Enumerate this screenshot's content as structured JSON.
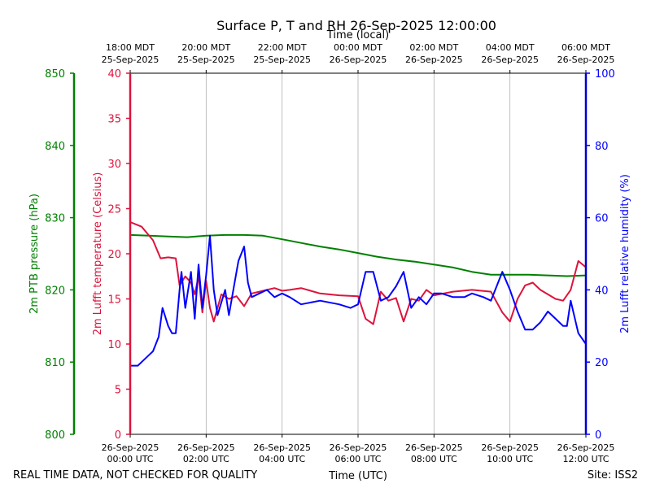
{
  "chart_data": {
    "type": "line",
    "title": "Surface P, T and RH 26-Sep-2025 12:00:00",
    "top_axis_label": "Time (local)",
    "top_ticks": [
      {
        "line1": "18:00 MDT",
        "line2": "25-Sep-2025"
      },
      {
        "line1": "20:00 MDT",
        "line2": "25-Sep-2025"
      },
      {
        "line1": "22:00 MDT",
        "line2": "25-Sep-2025"
      },
      {
        "line1": "00:00 MDT",
        "line2": "26-Sep-2025"
      },
      {
        "line1": "02:00 MDT",
        "line2": "26-Sep-2025"
      },
      {
        "line1": "04:00 MDT",
        "line2": "26-Sep-2025"
      },
      {
        "line1": "06:00 MDT",
        "line2": "26-Sep-2025"
      }
    ],
    "xlabel": "Time (UTC)",
    "bottom_ticks": [
      {
        "line1": "26-Sep-2025",
        "line2": "00:00 UTC"
      },
      {
        "line1": "26-Sep-2025",
        "line2": "02:00 UTC"
      },
      {
        "line1": "26-Sep-2025",
        "line2": "04:00 UTC"
      },
      {
        "line1": "26-Sep-2025",
        "line2": "06:00 UTC"
      },
      {
        "line1": "26-Sep-2025",
        "line2": "08:00 UTC"
      },
      {
        "line1": "26-Sep-2025",
        "line2": "10:00 UTC"
      },
      {
        "line1": "26-Sep-2025",
        "line2": "12:00 UTC"
      }
    ],
    "xlim_hours": [
      0,
      12
    ],
    "grid": "vertical",
    "axes": {
      "pressure": {
        "label": "2m PTB pressure (hPa)",
        "ylim": [
          800,
          850
        ],
        "ticks": [
          800,
          810,
          820,
          830,
          840,
          850
        ],
        "color": "#008000"
      },
      "temperature": {
        "label": "2m Lufft temperature (Celsius)",
        "ylim": [
          0,
          40
        ],
        "ticks": [
          0,
          5,
          10,
          15,
          20,
          25,
          30,
          35,
          40
        ],
        "color": "#dc143c"
      },
      "humidity": {
        "label": "2m Lufft relative humidity (%)",
        "ylim": [
          0,
          100
        ],
        "ticks": [
          0,
          20,
          40,
          60,
          80,
          100
        ],
        "color": "#0000ff"
      }
    },
    "series": [
      {
        "axis": "pressure",
        "color": "#008000",
        "x": [
          0,
          0.5,
          1,
          1.5,
          2,
          2.5,
          3,
          3.5,
          4,
          4.5,
          5,
          5.5,
          6,
          6.5,
          7,
          7.5,
          8,
          8.5,
          9,
          9.5,
          10,
          10.5,
          11,
          11.5,
          12
        ],
        "values": [
          827.6,
          827.5,
          827.4,
          827.3,
          827.5,
          827.6,
          827.6,
          827.5,
          827.0,
          826.5,
          826.0,
          825.6,
          825.1,
          824.6,
          824.2,
          823.9,
          823.5,
          823.1,
          822.5,
          822.1,
          822.1,
          822.1,
          822.0,
          821.9,
          822.0
        ]
      },
      {
        "axis": "temperature",
        "color": "#dc143c",
        "x": [
          0,
          0.3,
          0.6,
          0.8,
          1.0,
          1.2,
          1.3,
          1.45,
          1.6,
          1.7,
          1.8,
          1.9,
          2.0,
          2.1,
          2.2,
          2.4,
          2.6,
          2.8,
          3.0,
          3.2,
          3.4,
          3.6,
          3.8,
          4.0,
          4.2,
          4.5,
          5.0,
          5.5,
          6.0,
          6.2,
          6.4,
          6.6,
          6.8,
          7.0,
          7.2,
          7.4,
          7.6,
          7.8,
          8.0,
          8.5,
          9.0,
          9.5,
          9.8,
          10.0,
          10.2,
          10.4,
          10.6,
          10.8,
          11.0,
          11.2,
          11.4,
          11.6,
          11.8,
          12.0
        ],
        "values": [
          23.5,
          23.0,
          21.5,
          19.5,
          19.6,
          19.5,
          16.5,
          17.5,
          16.8,
          15.5,
          17.5,
          13.5,
          17.0,
          14.0,
          12.5,
          15.5,
          15.0,
          15.3,
          14.2,
          15.6,
          15.8,
          16.0,
          16.2,
          15.9,
          16.0,
          16.2,
          15.6,
          15.4,
          15.3,
          12.8,
          12.2,
          15.8,
          14.8,
          15.1,
          12.5,
          15.0,
          14.8,
          16.0,
          15.4,
          15.8,
          16.0,
          15.8,
          13.5,
          12.5,
          15.0,
          16.5,
          16.8,
          16.0,
          15.5,
          15.0,
          14.8,
          16.0,
          19.2,
          18.5
        ]
      },
      {
        "axis": "humidity",
        "color": "#0000ff",
        "x": [
          0,
          0.2,
          0.3,
          0.5,
          0.6,
          0.75,
          0.85,
          1.0,
          1.1,
          1.2,
          1.3,
          1.35,
          1.45,
          1.6,
          1.7,
          1.8,
          1.9,
          2.0,
          2.1,
          2.2,
          2.3,
          2.5,
          2.6,
          2.75,
          2.85,
          3.0,
          3.1,
          3.2,
          3.4,
          3.6,
          3.8,
          4.0,
          4.2,
          4.5,
          5.0,
          5.5,
          5.8,
          6.0,
          6.2,
          6.4,
          6.6,
          6.8,
          7.0,
          7.2,
          7.4,
          7.6,
          7.8,
          8.0,
          8.2,
          8.5,
          8.8,
          9.0,
          9.3,
          9.5,
          9.8,
          10.0,
          10.2,
          10.4,
          10.6,
          10.8,
          11.0,
          11.2,
          11.4,
          11.5,
          11.6,
          11.8,
          12.0
        ],
        "values": [
          19,
          19,
          20,
          22,
          23,
          27,
          35,
          30,
          28,
          28,
          40,
          45,
          35,
          45,
          32,
          47,
          35,
          44,
          55,
          40,
          33,
          40,
          33,
          42,
          48,
          52,
          42,
          38,
          39,
          40,
          38,
          39,
          38,
          36,
          37,
          36,
          35,
          36,
          45,
          45,
          37,
          38,
          41,
          45,
          35,
          38,
          36,
          39,
          39,
          38,
          38,
          39,
          38,
          37,
          45,
          40,
          34,
          29,
          29,
          31,
          34,
          32,
          30,
          30,
          37,
          28,
          25
        ]
      }
    ]
  },
  "footer": {
    "left_note": "REAL TIME DATA, NOT CHECKED FOR QUALITY",
    "site": "Site: ISS2"
  }
}
